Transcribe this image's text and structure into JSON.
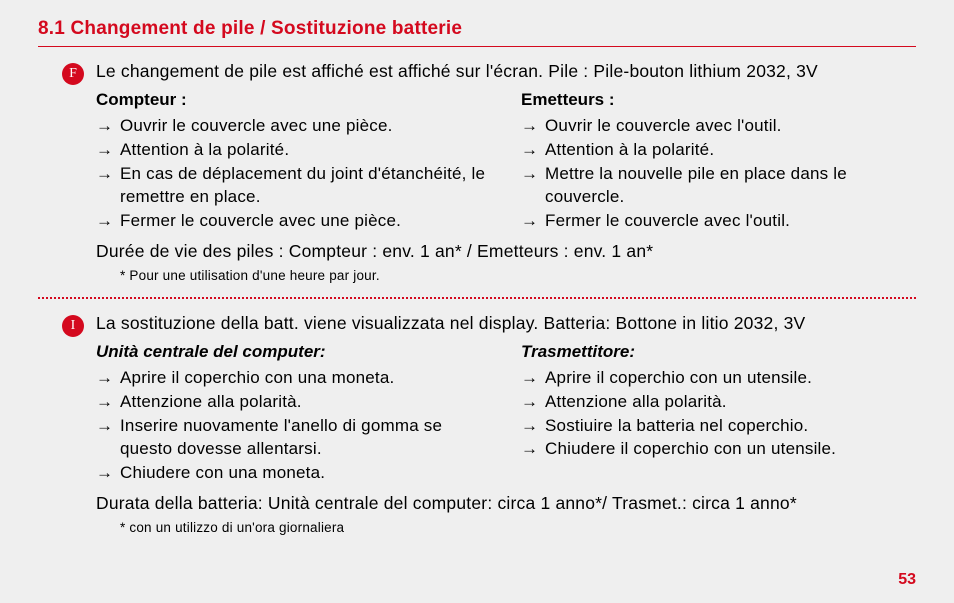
{
  "title": "8.1 Changement de pile / Sostituzione batterie",
  "colors": {
    "accent": "#d4091e",
    "background": "#efefef",
    "text": "#000000"
  },
  "pageNumber": "53",
  "french": {
    "badge": "F",
    "intro": "Le changement de pile est affiché est affiché sur l'écran. Pile : Pile-bouton lithium 2032, 3V",
    "left": {
      "head": "Compteur :",
      "items": [
        "Ouvrir le couvercle avec une pièce.",
        "Attention à la polarité.",
        "En cas de déplacement du joint d'étanchéité, le remettre en place.",
        "Fermer le couvercle avec une pièce."
      ]
    },
    "right": {
      "head": "Emetteurs :",
      "items": [
        "Ouvrir le couvercle avec l'outil.",
        "Attention à la polarité.",
        "Mettre la nouvelle pile en place dans le couvercle.",
        "Fermer le couvercle avec l'outil."
      ]
    },
    "duration": "Durée de vie des piles : Compteur : env. 1 an* / Emetteurs : env. 1 an*",
    "footnote": "* Pour une utilisation d'une heure par jour."
  },
  "italian": {
    "badge": "I",
    "intro": "La sostituzione della batt. viene visualizzata nel display. Batteria: Bottone in litio 2032, 3V",
    "left": {
      "head": "Unità centrale del computer:",
      "items": [
        "Aprire il coperchio con una moneta.",
        "Attenzione alla polarità.",
        "Inserire nuovamente l'anello di gomma se questo dovesse allentarsi.",
        "Chiudere con una moneta."
      ]
    },
    "right": {
      "head": "Trasmettitore:",
      "items": [
        "Aprire il coperchio con un utensile.",
        "Attenzione alla polarità.",
        "Sostiuire la batteria nel coperchio.",
        "Chiudere il coperchio con un utensile."
      ]
    },
    "duration": "Durata della batteria: Unità centrale del computer: circa 1 anno*/ Trasmet.: circa 1 anno*",
    "footnote": "* con un utilizzo di un'ora giornaliera"
  }
}
